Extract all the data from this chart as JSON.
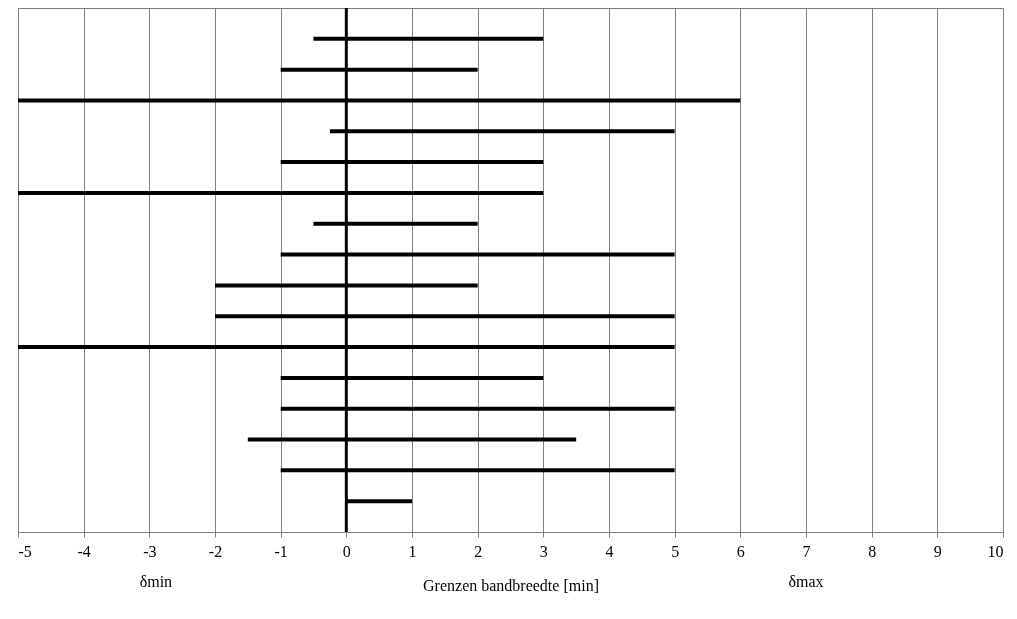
{
  "chart_data": {
    "type": "bar",
    "orientation": "horizontal",
    "xlabel": "Grenzen bandbreedte [min]",
    "annotations": [
      "δmin",
      "δmax"
    ],
    "categories": [
      null,
      null,
      null,
      null,
      null,
      null,
      null,
      null,
      null,
      null,
      null,
      null,
      null,
      null,
      null,
      null
    ],
    "base": [
      -0.5,
      -1,
      -5,
      -0.25,
      -1,
      -5,
      -0.5,
      -1,
      -2,
      -2,
      -5,
      -1,
      -1,
      -1.5,
      -1,
      0
    ],
    "values": [
      3.5,
      3,
      11,
      5.25,
      4,
      8,
      2.5,
      6,
      4,
      7,
      10,
      4,
      6,
      5,
      6,
      1
    ],
    "color": "#000000",
    "xlim": [
      -5,
      10
    ],
    "xticks": [
      -5,
      -4,
      -3,
      -2,
      -1,
      0,
      1,
      2,
      3,
      4,
      5,
      6,
      7,
      8,
      9,
      10
    ],
    "grid": "x",
    "tick_labels": "x",
    "ref_lines": [
      {
        "axis": "x",
        "value": 0,
        "color": "#000000"
      }
    ]
  }
}
